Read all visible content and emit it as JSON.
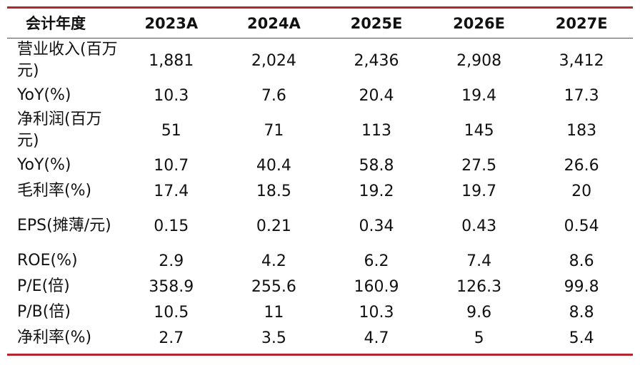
{
  "table": {
    "headers": [
      "会计年度",
      "2023A",
      "2024A",
      "2025E",
      "2026E",
      "2027E"
    ],
    "rows": [
      {
        "label": "营业收入(百万元)",
        "values": [
          "1,881",
          "2,024",
          "2,436",
          "2,908",
          "3,412"
        ]
      },
      {
        "label": "YoY(%)",
        "values": [
          "10.3",
          "7.6",
          "20.4",
          "19.4",
          "17.3"
        ]
      },
      {
        "label": "净利润(百万元)",
        "values": [
          "51",
          "71",
          "113",
          "145",
          "183"
        ]
      },
      {
        "label": "YoY(%)",
        "values": [
          "10.7",
          "40.4",
          "58.8",
          "27.5",
          "26.6"
        ]
      },
      {
        "label": "毛利率(%)",
        "values": [
          "17.4",
          "18.5",
          "19.2",
          "19.7",
          "20"
        ]
      },
      {
        "label": "EPS(摊薄/元)",
        "values": [
          "0.15",
          "0.21",
          "0.34",
          "0.43",
          "0.54"
        ]
      },
      {
        "label": "ROE(%)",
        "values": [
          "2.9",
          "4.2",
          "6.2",
          "7.4",
          "8.6"
        ]
      },
      {
        "label": "P/E(倍)",
        "values": [
          "358.9",
          "255.6",
          "160.9",
          "126.3",
          "99.8"
        ]
      },
      {
        "label": "P/B(倍)",
        "values": [
          "10.5",
          "11",
          "10.3",
          "9.6",
          "8.8"
        ]
      },
      {
        "label": "净利率(%)",
        "values": [
          "2.7",
          "3.5",
          "4.7",
          "5",
          "5.4"
        ]
      }
    ]
  },
  "colors": {
    "rule": "#b3262d",
    "text": "#111111",
    "background": "#ffffff"
  }
}
